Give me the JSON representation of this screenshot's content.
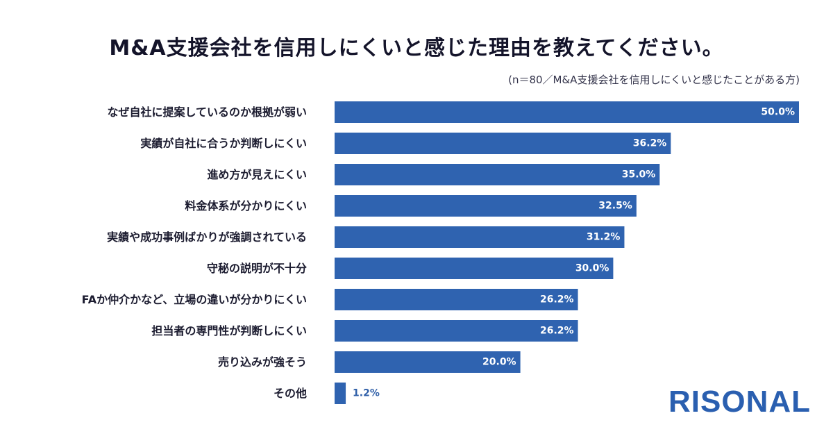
{
  "header": {
    "title": "M&A支援会社を信用しにくいと感じた理由を教えてください。",
    "note": "(n＝80／M&A支援会社を信用しにくいと感じたことがある方)"
  },
  "brand": {
    "logo_text": "RISONAL"
  },
  "colors": {
    "bar": "#2f63b0",
    "bar_highlight": "#2a5aa6",
    "logo": "#2a5fb0"
  },
  "chart_data": {
    "type": "bar",
    "orientation": "horizontal",
    "categories": [
      "なぜ自社に提案しているのか根拠が弱い",
      "実績が自社に合うか判断しにくい",
      "進め方が見えにくい",
      "料金体系が分かりにくい",
      "実績や成功事例ばかりが強調されている",
      "守秘の説明が不十分",
      "FAか仲介かなど、立場の違いが分かりにくい",
      "担当者の専門性が判断しにくい",
      "売り込みが強そう",
      "その他"
    ],
    "values": [
      50.0,
      36.2,
      35.0,
      32.5,
      31.2,
      30.0,
      26.2,
      26.2,
      20.0,
      1.2
    ],
    "value_labels": [
      "50.0%",
      "36.2%",
      "35.0%",
      "32.5%",
      "31.2%",
      "30.0%",
      "26.2%",
      "26.2%",
      "20.0%",
      "1.2%"
    ],
    "xlim": [
      0,
      50
    ],
    "grid": false,
    "legend": "none"
  }
}
